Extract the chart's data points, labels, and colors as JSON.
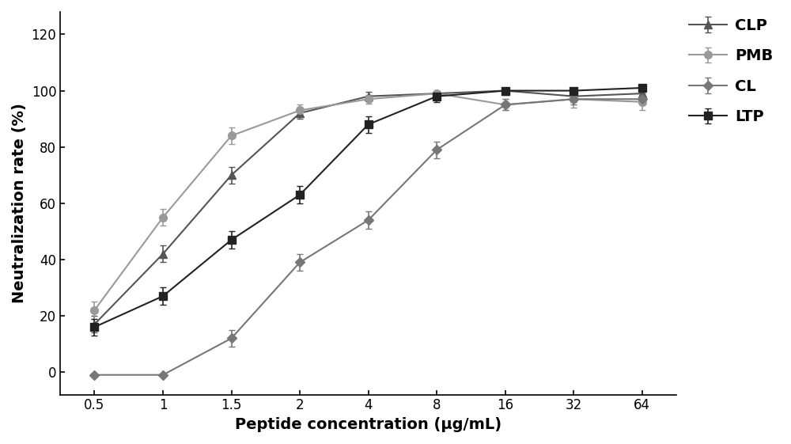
{
  "x_positions": [
    0,
    1,
    2,
    3,
    4,
    5,
    6,
    7,
    8
  ],
  "x_labels": [
    "0.5",
    "1",
    "1.5",
    "2",
    "4",
    "8",
    "16",
    "32",
    "64"
  ],
  "series": {
    "CLP": {
      "y": [
        17,
        42,
        70,
        92,
        98,
        99,
        100,
        98,
        99
      ],
      "yerr": [
        3,
        3,
        3,
        2,
        1.5,
        1,
        1,
        2,
        1
      ],
      "color": "#555555",
      "marker": "^",
      "markersize": 7,
      "label": "CLP"
    },
    "PMB": {
      "y": [
        22,
        55,
        84,
        93,
        97,
        99,
        95,
        97,
        96
      ],
      "yerr": [
        3,
        3,
        3,
        2,
        1.5,
        1,
        2,
        3,
        3
      ],
      "color": "#999999",
      "marker": "o",
      "markersize": 7,
      "label": "PMB"
    },
    "CL": {
      "y": [
        -1,
        -1,
        12,
        39,
        54,
        79,
        95,
        97,
        97
      ],
      "yerr": [
        0.5,
        0.5,
        3,
        3,
        3,
        3,
        2,
        2,
        2
      ],
      "color": "#777777",
      "marker": "D",
      "markersize": 6,
      "label": "CL"
    },
    "LTP": {
      "y": [
        16,
        27,
        47,
        63,
        88,
        98,
        100,
        100,
        101
      ],
      "yerr": [
        3,
        3,
        3,
        3,
        3,
        2,
        1,
        1,
        1
      ],
      "color": "#222222",
      "marker": "s",
      "markersize": 7,
      "label": "LTP"
    }
  },
  "xlabel": "Peptide concentration (μg/mL)",
  "ylabel": "Neutralization rate (%)",
  "ylim": [
    -8,
    128
  ],
  "yticks": [
    0,
    20,
    40,
    60,
    80,
    100,
    120
  ],
  "legend_order": [
    "CLP",
    "PMB",
    "CL",
    "LTP"
  ],
  "background_color": "#ffffff",
  "linewidth": 1.5,
  "capsize": 3,
  "elinewidth": 1.2,
  "xlabel_fontsize": 14,
  "ylabel_fontsize": 14,
  "tick_fontsize": 12,
  "legend_fontsize": 14
}
